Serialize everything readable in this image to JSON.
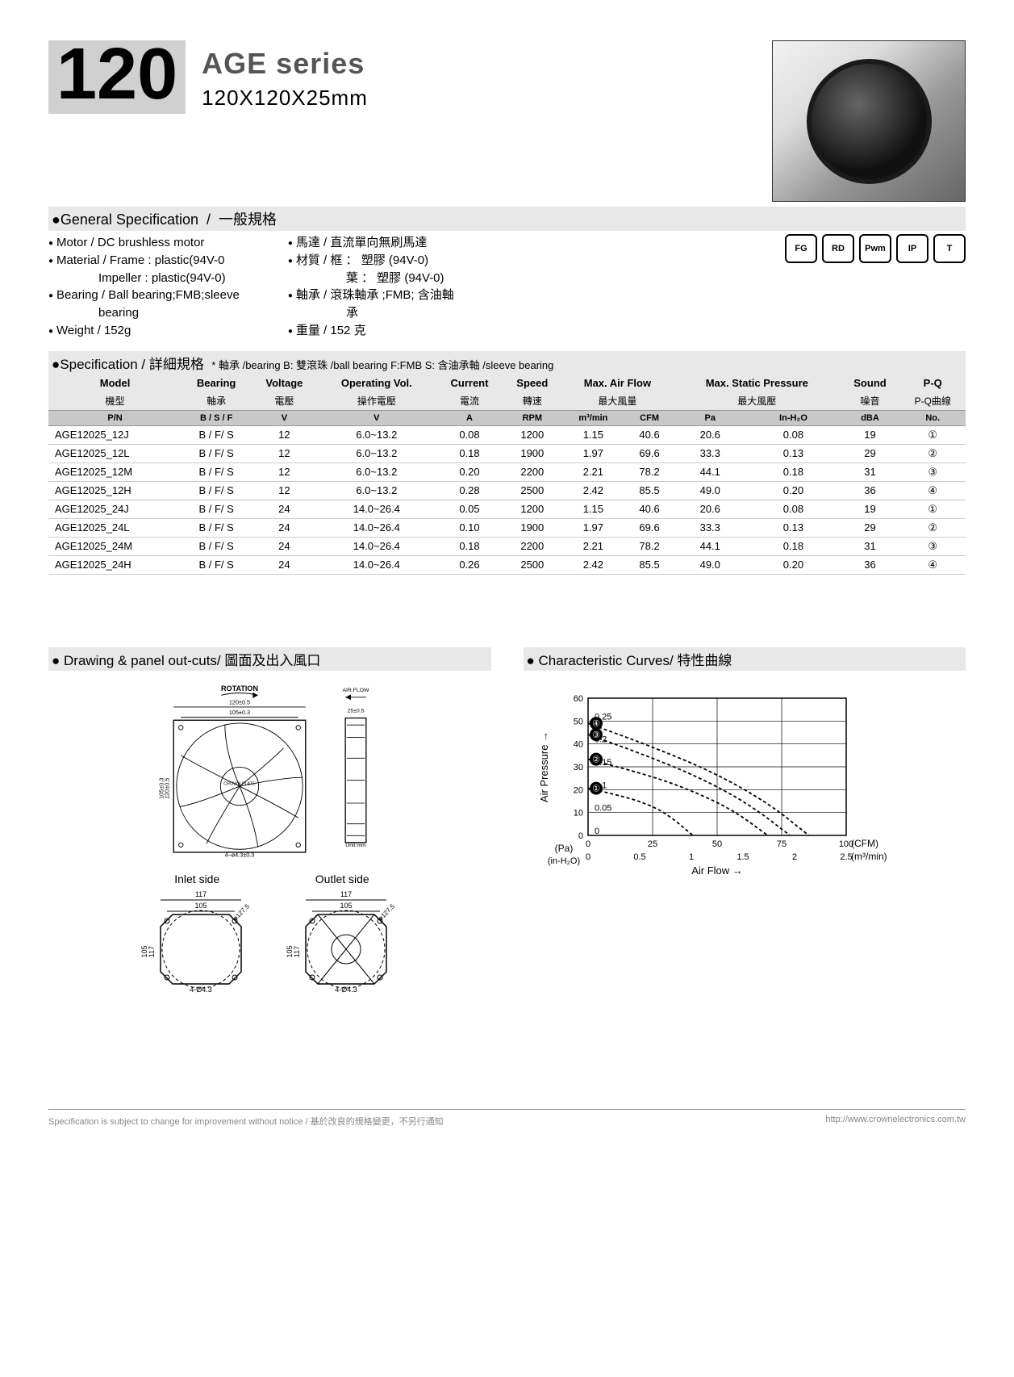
{
  "header": {
    "number": "120",
    "series": "AGE series",
    "dims": "120X120X25mm"
  },
  "general": {
    "title_en": "General Specification",
    "title_zh": "一般規格",
    "en": {
      "motor": "Motor  / DC brushless motor",
      "material1": "Material  / Frame : plastic(94V-0",
      "material2": "Impeller : plastic(94V-0)",
      "bearing": "Bearing  / Ball bearing;FMB;sleeve",
      "bearing2": "bearing",
      "weight": "Weight  / 152g"
    },
    "zh": {
      "motor": "馬達   / 直流單向無刷馬達",
      "material1": "材質   / 框 ： 塑膠 (94V-0)",
      "material2": "葉 ： 塑膠 (94V-0)",
      "bearing": "軸承   / 滾珠軸承 ;FMB; 含油軸",
      "bearing2": "承",
      "weight": "重量   / 152 克"
    }
  },
  "icons": [
    "FG",
    "RD",
    "Pwm",
    "IP",
    "T"
  ],
  "spec_header": {
    "title": "Specification / 詳細規格",
    "note": "* 軸承 /bearing B: 雙滾珠 /ball bearing F:FMB S: 含油承軸 /sleeve bearing"
  },
  "columns_en": [
    "Model",
    "Bearing",
    "Voltage",
    "Operating Vol.",
    "Current",
    "Speed",
    "Max. Air Flow",
    "",
    "Max. Static Pressure",
    "",
    "Sound",
    "P-Q"
  ],
  "columns_zh": [
    "機型",
    "軸承",
    "電壓",
    "操作電壓",
    "電流",
    "轉速",
    "最大風量",
    "",
    "最大風壓",
    "",
    "噪音",
    "P-Q曲線"
  ],
  "units": [
    "P/N",
    "B / S / F",
    "V",
    "V",
    "A",
    "RPM",
    "m³/min",
    "CFM",
    "Pa",
    "In-H₂O",
    "dBA",
    "No."
  ],
  "rows": [
    [
      "AGE12025_12J",
      "B / F/ S",
      "12",
      "6.0~13.2",
      "0.08",
      "1200",
      "1.15",
      "40.6",
      "20.6",
      "0.08",
      "19",
      "①"
    ],
    [
      "AGE12025_12L",
      "B / F/ S",
      "12",
      "6.0~13.2",
      "0.18",
      "1900",
      "1.97",
      "69.6",
      "33.3",
      "0.13",
      "29",
      "②"
    ],
    [
      "AGE12025_12M",
      "B / F/ S",
      "12",
      "6.0~13.2",
      "0.20",
      "2200",
      "2.21",
      "78.2",
      "44.1",
      "0.18",
      "31",
      "③"
    ],
    [
      "AGE12025_12H",
      "B / F/ S",
      "12",
      "6.0~13.2",
      "0.28",
      "2500",
      "2.42",
      "85.5",
      "49.0",
      "0.20",
      "36",
      "④"
    ],
    [
      "AGE12025_24J",
      "B / F/ S",
      "24",
      "14.0~26.4",
      "0.05",
      "1200",
      "1.15",
      "40.6",
      "20.6",
      "0.08",
      "19",
      "①"
    ],
    [
      "AGE12025_24L",
      "B / F/ S",
      "24",
      "14.0~26.4",
      "0.10",
      "1900",
      "1.97",
      "69.6",
      "33.3",
      "0.13",
      "29",
      "②"
    ],
    [
      "AGE12025_24M",
      "B / F/ S",
      "24",
      "14.0~26.4",
      "0.18",
      "2200",
      "2.21",
      "78.2",
      "44.1",
      "0.18",
      "31",
      "③"
    ],
    [
      "AGE12025_24H",
      "B / F/ S",
      "24",
      "14.0~26.4",
      "0.26",
      "2500",
      "2.42",
      "85.5",
      "49.0",
      "0.20",
      "36",
      "④"
    ]
  ],
  "drawing": {
    "title": "Drawing & panel out-cuts/ 圖面及出入風口",
    "rotation": "ROTATION",
    "airflow": "AIR FLOW",
    "dim_w": "120±0.5",
    "dim_w2": "105±0.3",
    "dim_h": "120±0.5",
    "dim_h2": "105±0.3",
    "holes": "4–ø4.3±0.3",
    "depth": "25±0.5",
    "unit": "Unit:mm",
    "crown": "CROWN PLATE",
    "inlet": "Inlet side",
    "outlet": "Outlet side",
    "cut_117": "117",
    "cut_105": "105",
    "cut_dia": "ø127.5",
    "cut_holes": "4-Ø4.3"
  },
  "chart": {
    "title": "Characteristic Curves/ 特性曲線",
    "y_label": "Air Pressure",
    "x_label": "Air Flow",
    "y1_ticks": [
      0,
      10,
      20,
      30,
      40,
      50,
      60
    ],
    "y2_ticks": [
      "0",
      "0.05",
      "0.1",
      "0.15",
      "0.2",
      "0.25"
    ],
    "x1_ticks": [
      0,
      25,
      50,
      75,
      100
    ],
    "x2_ticks": [
      "0",
      "0.5",
      "1",
      "1.5",
      "2",
      "2.5"
    ],
    "x1_unit": "(CFM)",
    "x2_unit": "(m³/min)",
    "y1_unit": "(Pa)",
    "y2_unit": "(in-H₂O)",
    "curves": {
      "1": [
        [
          0,
          20.6
        ],
        [
          10,
          18
        ],
        [
          20,
          15
        ],
        [
          30,
          10
        ],
        [
          40.6,
          0
        ]
      ],
      "2": [
        [
          0,
          33.3
        ],
        [
          18,
          28
        ],
        [
          35,
          22
        ],
        [
          55,
          12
        ],
        [
          69.6,
          0
        ]
      ],
      "3": [
        [
          0,
          44.1
        ],
        [
          20,
          36
        ],
        [
          42,
          26
        ],
        [
          62,
          14
        ],
        [
          78.2,
          0
        ]
      ],
      "4": [
        [
          0,
          49.0
        ],
        [
          22,
          40
        ],
        [
          48,
          28
        ],
        [
          70,
          14
        ],
        [
          85.5,
          0
        ]
      ]
    },
    "curve_labels": [
      "①",
      "②",
      "③",
      "④"
    ],
    "xlim": [
      0,
      100
    ],
    "ylim": [
      0,
      60
    ],
    "line_color": "#000000",
    "grid_color": "#000000",
    "dash": "4,3"
  },
  "footer": {
    "left": "Specification is subject to change for improvement without notice /   基於改良的規格變更，不另行通知",
    "right": "http://www.crownelectronics.com.tw"
  }
}
